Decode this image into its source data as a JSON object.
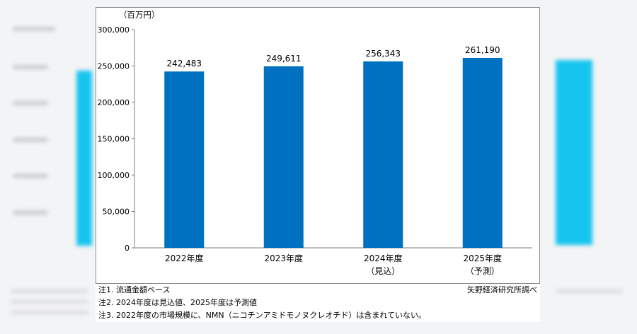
{
  "chart_data": {
    "type": "bar",
    "unit_label": "（百万円）",
    "categories": [
      {
        "line1": "2022年度",
        "line2": ""
      },
      {
        "line1": "2023年度",
        "line2": ""
      },
      {
        "line1": "2024年度",
        "line2": "（見込）"
      },
      {
        "line1": "2025年度",
        "line2": "（予測）"
      }
    ],
    "values": [
      242483,
      249611,
      256343,
      261190
    ],
    "value_labels": [
      "242,483",
      "249,611",
      "256,343",
      "261,190"
    ],
    "ylim": [
      0,
      300000
    ],
    "yticks": [
      0,
      50000,
      100000,
      150000,
      200000,
      250000,
      300000
    ],
    "ytick_labels": [
      "0",
      "50,000",
      "100,000",
      "150,000",
      "200,000",
      "250,000",
      "300,000"
    ],
    "bar_color": "#0070c0",
    "grid": false,
    "legend": "none"
  },
  "footer": {
    "notes": [
      "注1.  流通金額ベース",
      "注2.  2024年度は見込値、2025年度は予測値",
      "注3.  2022年度の市場規模に、NMN（ニコチンアミドモノヌクレオチド）は含まれていない。"
    ],
    "source": "矢野経済研究所調べ"
  },
  "colors": {
    "ghost_bar": "#17c4ee",
    "background": "#f3f4f6"
  }
}
